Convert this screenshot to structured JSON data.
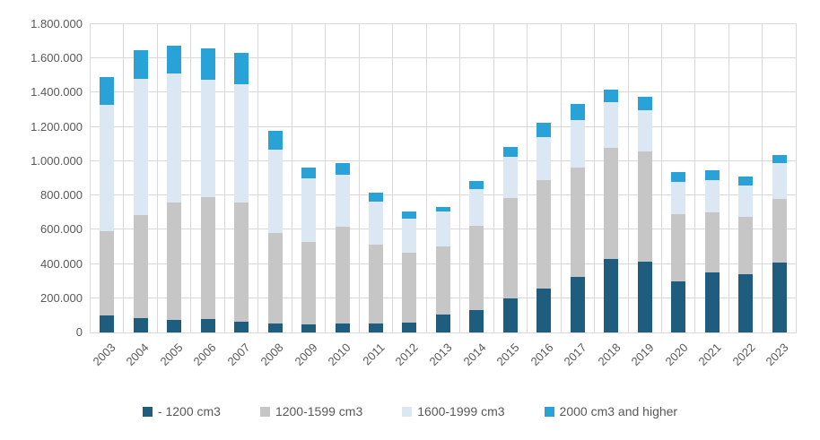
{
  "chart_data": {
    "type": "bar",
    "stacked": true,
    "title": "",
    "xlabel": "",
    "ylabel": "",
    "grid": true,
    "legend_position": "bottom",
    "ylim": [
      0,
      1800000
    ],
    "y_ticks": [
      "0",
      "200.000",
      "400.000",
      "600.000",
      "800.000",
      "1.000.000",
      "1.200.000",
      "1.400.000",
      "1.600.000",
      "1.800.000"
    ],
    "categories": [
      "2003",
      "2004",
      "2005",
      "2006",
      "2007",
      "2008",
      "2009",
      "2010",
      "2011",
      "2012",
      "2013",
      "2014",
      "2015",
      "2016",
      "2017",
      "2018",
      "2019",
      "2020",
      "2021",
      "2022",
      "2023"
    ],
    "series": [
      {
        "name": "- 1200 cm3",
        "color": "#1E5D7E",
        "values": [
          100000,
          85000,
          75000,
          80000,
          65000,
          50000,
          45000,
          55000,
          50000,
          60000,
          105000,
          130000,
          200000,
          255000,
          325000,
          430000,
          415000,
          300000,
          350000,
          340000,
          410000
        ]
      },
      {
        "name": "1200-1599 cm3",
        "color": "#C6C6C6",
        "values": [
          490000,
          600000,
          685000,
          710000,
          695000,
          530000,
          485000,
          560000,
          465000,
          405000,
          400000,
          495000,
          585000,
          635000,
          640000,
          650000,
          640000,
          390000,
          350000,
          335000,
          370000
        ]
      },
      {
        "name": "1600-1999 cm3",
        "color": "#DBE8F4",
        "values": [
          740000,
          795000,
          750000,
          685000,
          690000,
          490000,
          370000,
          305000,
          250000,
          200000,
          200000,
          210000,
          240000,
          250000,
          275000,
          265000,
          245000,
          190000,
          190000,
          185000,
          210000
        ]
      },
      {
        "name": "2000 cm3 and higher",
        "color": "#29A2D8",
        "values": [
          160000,
          170000,
          165000,
          185000,
          185000,
          110000,
          65000,
          70000,
          50000,
          40000,
          30000,
          50000,
          60000,
          85000,
          95000,
          75000,
          75000,
          55000,
          55000,
          50000,
          45000
        ]
      }
    ]
  },
  "colors": {
    "text": "#595959",
    "gridline": "#D9D9D9",
    "background": "#FFFFFF"
  }
}
